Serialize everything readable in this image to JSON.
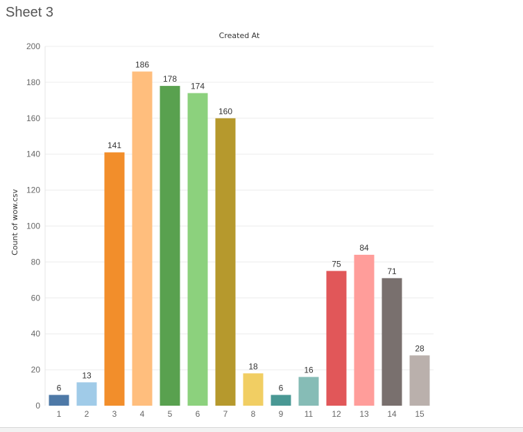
{
  "sheet": {
    "title": "Sheet 3"
  },
  "chart_data": {
    "type": "bar",
    "title": "Created At",
    "xlabel": "",
    "ylabel": "Count of wow.csv",
    "ylim": [
      0,
      200
    ],
    "yticks": [
      0,
      20,
      40,
      60,
      80,
      100,
      120,
      140,
      160,
      180,
      200
    ],
    "grid": true,
    "categories": [
      "1",
      "2",
      "3",
      "4",
      "5",
      "6",
      "7",
      "8",
      "9",
      "11",
      "12",
      "13",
      "14",
      "15"
    ],
    "values": [
      6,
      13,
      141,
      186,
      178,
      174,
      160,
      18,
      6,
      16,
      75,
      84,
      71,
      28
    ],
    "colors": [
      "#4e79a7",
      "#a0cbe8",
      "#f28e2b",
      "#ffbe7d",
      "#59a14f",
      "#8cd17d",
      "#b6992d",
      "#f1ce63",
      "#499894",
      "#86bcb6",
      "#e15759",
      "#ff9d9a",
      "#79706e",
      "#bab0ac"
    ]
  }
}
